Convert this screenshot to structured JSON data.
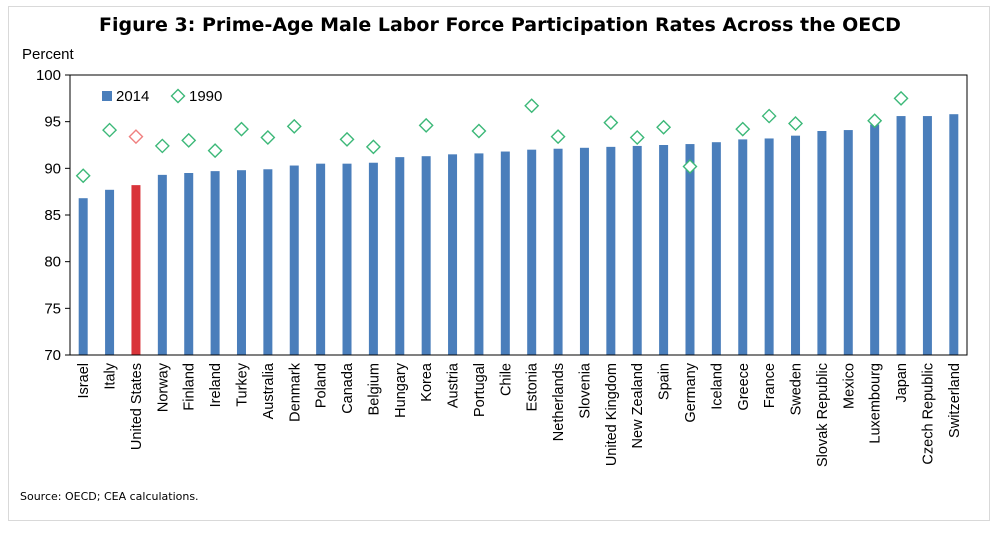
{
  "chart_data": {
    "type": "bar",
    "title": "Figure 3: Prime-Age Male Labor Force Participation Rates Across the OECD",
    "ylabel": "Percent",
    "xlabel": "",
    "ylim": [
      70,
      100
    ],
    "yticks": [
      70,
      75,
      80,
      85,
      90,
      95,
      100
    ],
    "grid": false,
    "legend": "top-left",
    "categories": [
      "Israel",
      "Italy",
      "United States",
      "Norway",
      "Finland",
      "Ireland",
      "Turkey",
      "Australia",
      "Denmark",
      "Poland",
      "Canada",
      "Belgium",
      "Hungary",
      "Korea",
      "Austria",
      "Portugal",
      "Chile",
      "Estonia",
      "Netherlands",
      "Slovenia",
      "United Kingdom",
      "New Zealand",
      "Spain",
      "Germany",
      "Iceland",
      "Greece",
      "France",
      "Sweden",
      "Slovak Republic",
      "Mexico",
      "Luxembourg",
      "Japan",
      "Czech Republic",
      "Switzerland"
    ],
    "highlight_category": "United States",
    "series": [
      {
        "name": "2014",
        "mark": "bar",
        "color": "#4a7ebb",
        "highlight_color": "#d9343a",
        "values": [
          86.8,
          87.7,
          88.2,
          89.3,
          89.5,
          89.7,
          89.8,
          89.9,
          90.3,
          90.5,
          90.5,
          90.6,
          91.2,
          91.3,
          91.5,
          91.6,
          91.8,
          92.0,
          92.1,
          92.2,
          92.3,
          92.4,
          92.5,
          92.6,
          92.8,
          93.1,
          93.2,
          93.5,
          94.0,
          94.1,
          94.7,
          95.6,
          95.6,
          95.8
        ]
      },
      {
        "name": "1990",
        "mark": "diamond",
        "color": "#3cb878",
        "highlight_color": "#f08080",
        "values": [
          89.2,
          94.1,
          93.4,
          92.4,
          93.0,
          91.9,
          94.2,
          93.3,
          94.5,
          null,
          93.1,
          92.3,
          null,
          94.6,
          null,
          94.0,
          null,
          96.7,
          93.4,
          null,
          94.9,
          93.3,
          94.4,
          90.2,
          null,
          94.2,
          95.6,
          94.8,
          null,
          null,
          95.1,
          97.5,
          null,
          null
        ]
      }
    ]
  },
  "source_note": "Source: OECD; CEA calculations."
}
